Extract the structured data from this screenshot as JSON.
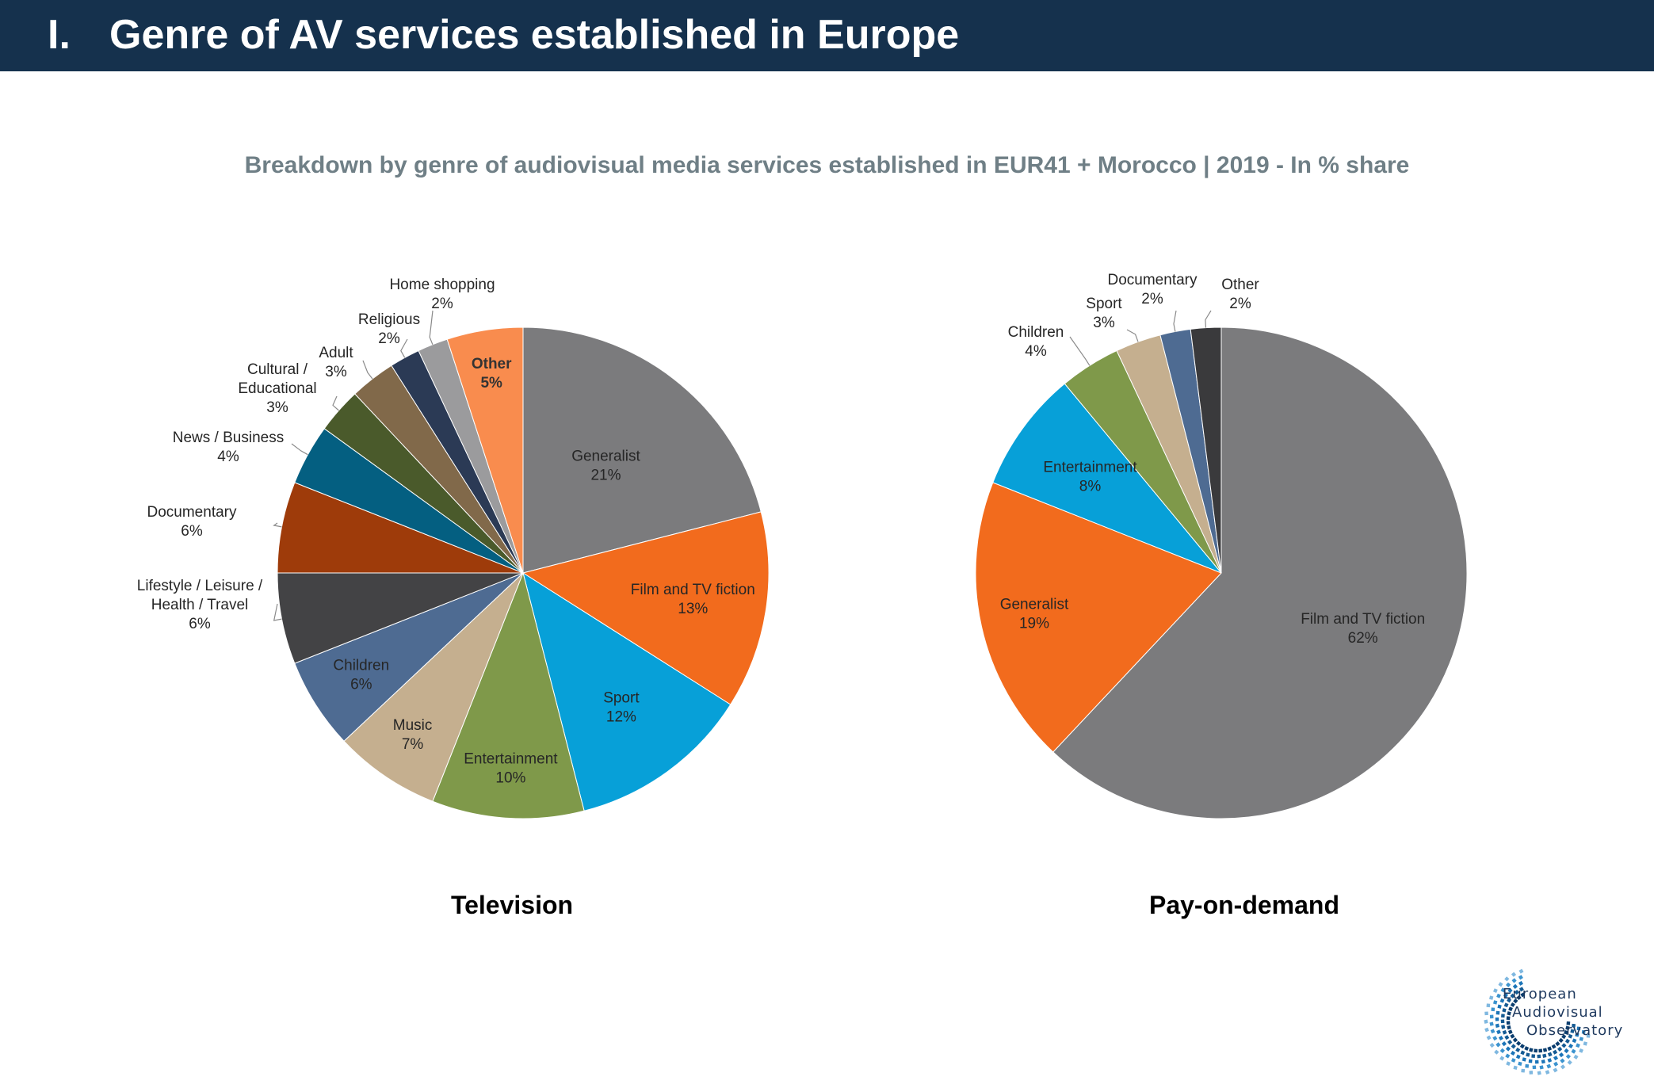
{
  "header": {
    "number": "I.",
    "title": "Genre of AV services established in Europe"
  },
  "subtitle": "Breakdown by genre of audiovisual media services established in EUR41 + Morocco | 2019 - In % share",
  "chart_data": [
    {
      "type": "pie",
      "title": "Television",
      "slices": [
        {
          "label": "Generalist",
          "value": 21,
          "pct_label": "21%",
          "color": "#7b7b7d"
        },
        {
          "label": "Film and TV fiction",
          "value": 13,
          "pct_label": "13%",
          "color": "#f26b1d"
        },
        {
          "label": "Sport",
          "value": 12,
          "pct_label": "12%",
          "color": "#07a0d8"
        },
        {
          "label": "Entertainment",
          "value": 10,
          "pct_label": "10%",
          "color": "#7f994a"
        },
        {
          "label": "Music",
          "value": 7,
          "pct_label": "7%",
          "color": "#c5af8f"
        },
        {
          "label": "Children",
          "value": 6,
          "pct_label": "6%",
          "color": "#4e6b92"
        },
        {
          "label": "Lifestyle / Leisure / Health / Travel",
          "value": 6,
          "pct_label": "6%",
          "color": "#434345",
          "lines": [
            "Lifestyle / Leisure /",
            "Health / Travel"
          ]
        },
        {
          "label": "Documentary",
          "value": 6,
          "pct_label": "6%",
          "color": "#9e3b0a"
        },
        {
          "label": "News / Business",
          "value": 4,
          "pct_label": "4%",
          "color": "#045f81"
        },
        {
          "label": "Cultural / Educational",
          "value": 3,
          "pct_label": "3%",
          "color": "#4a5a2b",
          "lines": [
            "Cultural /",
            "Educational"
          ]
        },
        {
          "label": "Adult",
          "value": 3,
          "pct_label": "3%",
          "color": "#81694a"
        },
        {
          "label": "Religious",
          "value": 2,
          "pct_label": "2%",
          "color": "#2b3a55"
        },
        {
          "label": "Home shopping",
          "value": 2,
          "pct_label": "2%",
          "color": "#9b9b9d"
        },
        {
          "label": "Other",
          "value": 5,
          "pct_label": "5%",
          "color": "#f98c4e"
        }
      ]
    },
    {
      "type": "pie",
      "title": "Pay-on-demand",
      "slices": [
        {
          "label": "Film and TV fiction",
          "value": 62,
          "pct_label": "62%",
          "color": "#7b7b7d"
        },
        {
          "label": "Generalist",
          "value": 19,
          "pct_label": "19%",
          "color": "#f26b1d"
        },
        {
          "label": "Entertainment",
          "value": 8,
          "pct_label": "8%",
          "color": "#07a0d8"
        },
        {
          "label": "Children",
          "value": 4,
          "pct_label": "4%",
          "color": "#7f994a"
        },
        {
          "label": "Sport",
          "value": 3,
          "pct_label": "3%",
          "color": "#c5af8f"
        },
        {
          "label": "Documentary",
          "value": 2,
          "pct_label": "2%",
          "color": "#4e6b92"
        },
        {
          "label": "Other",
          "value": 2,
          "pct_label": "2%",
          "color": "#3a3a3c"
        }
      ]
    }
  ],
  "logo": {
    "line1": "European",
    "line2": "Audiovisual",
    "line3": "Observatory"
  }
}
